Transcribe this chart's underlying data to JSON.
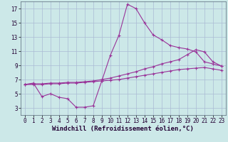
{
  "xlabel": "Windchill (Refroidissement éolien,°C)",
  "background_color": "#cce8e8",
  "grid_color": "#aabbd4",
  "line_color": "#993399",
  "xlim": [
    -0.5,
    23.5
  ],
  "ylim": [
    2.0,
    18.0
  ],
  "xticks": [
    0,
    1,
    2,
    3,
    4,
    5,
    6,
    7,
    8,
    9,
    10,
    11,
    12,
    13,
    14,
    15,
    16,
    17,
    18,
    19,
    20,
    21,
    22,
    23
  ],
  "yticks": [
    3,
    5,
    7,
    9,
    11,
    13,
    15,
    17
  ],
  "curve1_x": [
    0,
    1,
    2,
    3,
    4,
    5,
    6,
    7,
    8,
    9,
    10,
    11,
    12,
    13,
    14,
    15,
    16,
    17,
    18,
    19,
    20,
    21,
    22,
    23
  ],
  "curve1_y": [
    6.3,
    6.5,
    4.6,
    5.0,
    4.5,
    4.3,
    3.1,
    3.1,
    3.3,
    6.8,
    10.4,
    13.2,
    17.6,
    17.0,
    15.0,
    13.3,
    12.6,
    11.8,
    11.5,
    11.3,
    10.9,
    9.5,
    9.2,
    8.9
  ],
  "curve2_x": [
    0,
    1,
    2,
    3,
    4,
    5,
    6,
    7,
    8,
    9,
    10,
    11,
    12,
    13,
    14,
    15,
    16,
    17,
    18,
    19,
    20,
    21,
    22,
    23
  ],
  "curve2_y": [
    6.3,
    6.4,
    6.4,
    6.5,
    6.5,
    6.6,
    6.6,
    6.7,
    6.8,
    7.0,
    7.2,
    7.5,
    7.8,
    8.1,
    8.5,
    8.8,
    9.2,
    9.5,
    9.8,
    10.5,
    11.2,
    10.9,
    9.5,
    8.9
  ],
  "curve3_x": [
    0,
    1,
    2,
    3,
    4,
    5,
    6,
    7,
    8,
    9,
    10,
    11,
    12,
    13,
    14,
    15,
    16,
    17,
    18,
    19,
    20,
    21,
    22,
    23
  ],
  "curve3_y": [
    6.3,
    6.3,
    6.3,
    6.4,
    6.4,
    6.5,
    6.5,
    6.6,
    6.7,
    6.8,
    6.9,
    7.0,
    7.2,
    7.4,
    7.6,
    7.8,
    8.0,
    8.2,
    8.4,
    8.5,
    8.6,
    8.7,
    8.5,
    8.3
  ],
  "marker": "+",
  "markersize": 3,
  "markeredgewidth": 0.8,
  "linewidth": 0.8,
  "tick_fontsize": 5.5,
  "xlabel_fontsize": 6.5
}
